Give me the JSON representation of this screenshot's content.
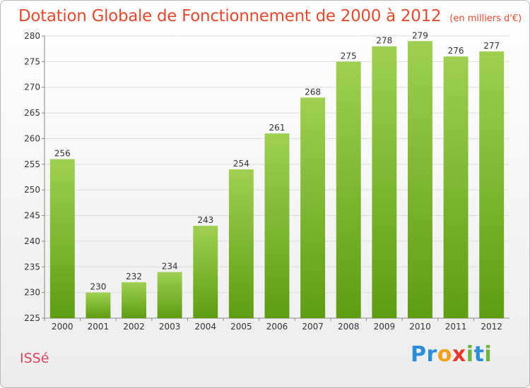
{
  "header": {
    "title": "Dotation Globale de Fonctionnement de 2000 à 2012",
    "subtitle": "(en milliers d'€)"
  },
  "footer": {
    "commune": "ISSé",
    "logo_letters": [
      "P",
      "r",
      "o",
      "x",
      "i",
      "t",
      "i"
    ]
  },
  "colors": {
    "title": "#e04a2e",
    "commune": "#d8445f",
    "bar_top": "#9fd052",
    "bar_bottom": "#5f9c12",
    "grid": "#dcdcdc"
  },
  "chart_data": {
    "type": "bar",
    "title": "Dotation Globale de Fonctionnement de 2000 à 2012",
    "subtitle": "(en milliers d'€)",
    "categories": [
      "2000",
      "2001",
      "2002",
      "2003",
      "2004",
      "2005",
      "2006",
      "2007",
      "2008",
      "2009",
      "2010",
      "2011",
      "2012"
    ],
    "values": [
      256,
      230,
      232,
      234,
      243,
      254,
      261,
      268,
      275,
      278,
      279,
      276,
      277
    ],
    "ylim": [
      225,
      280
    ],
    "yticks": [
      225,
      230,
      235,
      240,
      245,
      250,
      255,
      260,
      265,
      270,
      275,
      280
    ],
    "grid": true,
    "legend": "none"
  }
}
